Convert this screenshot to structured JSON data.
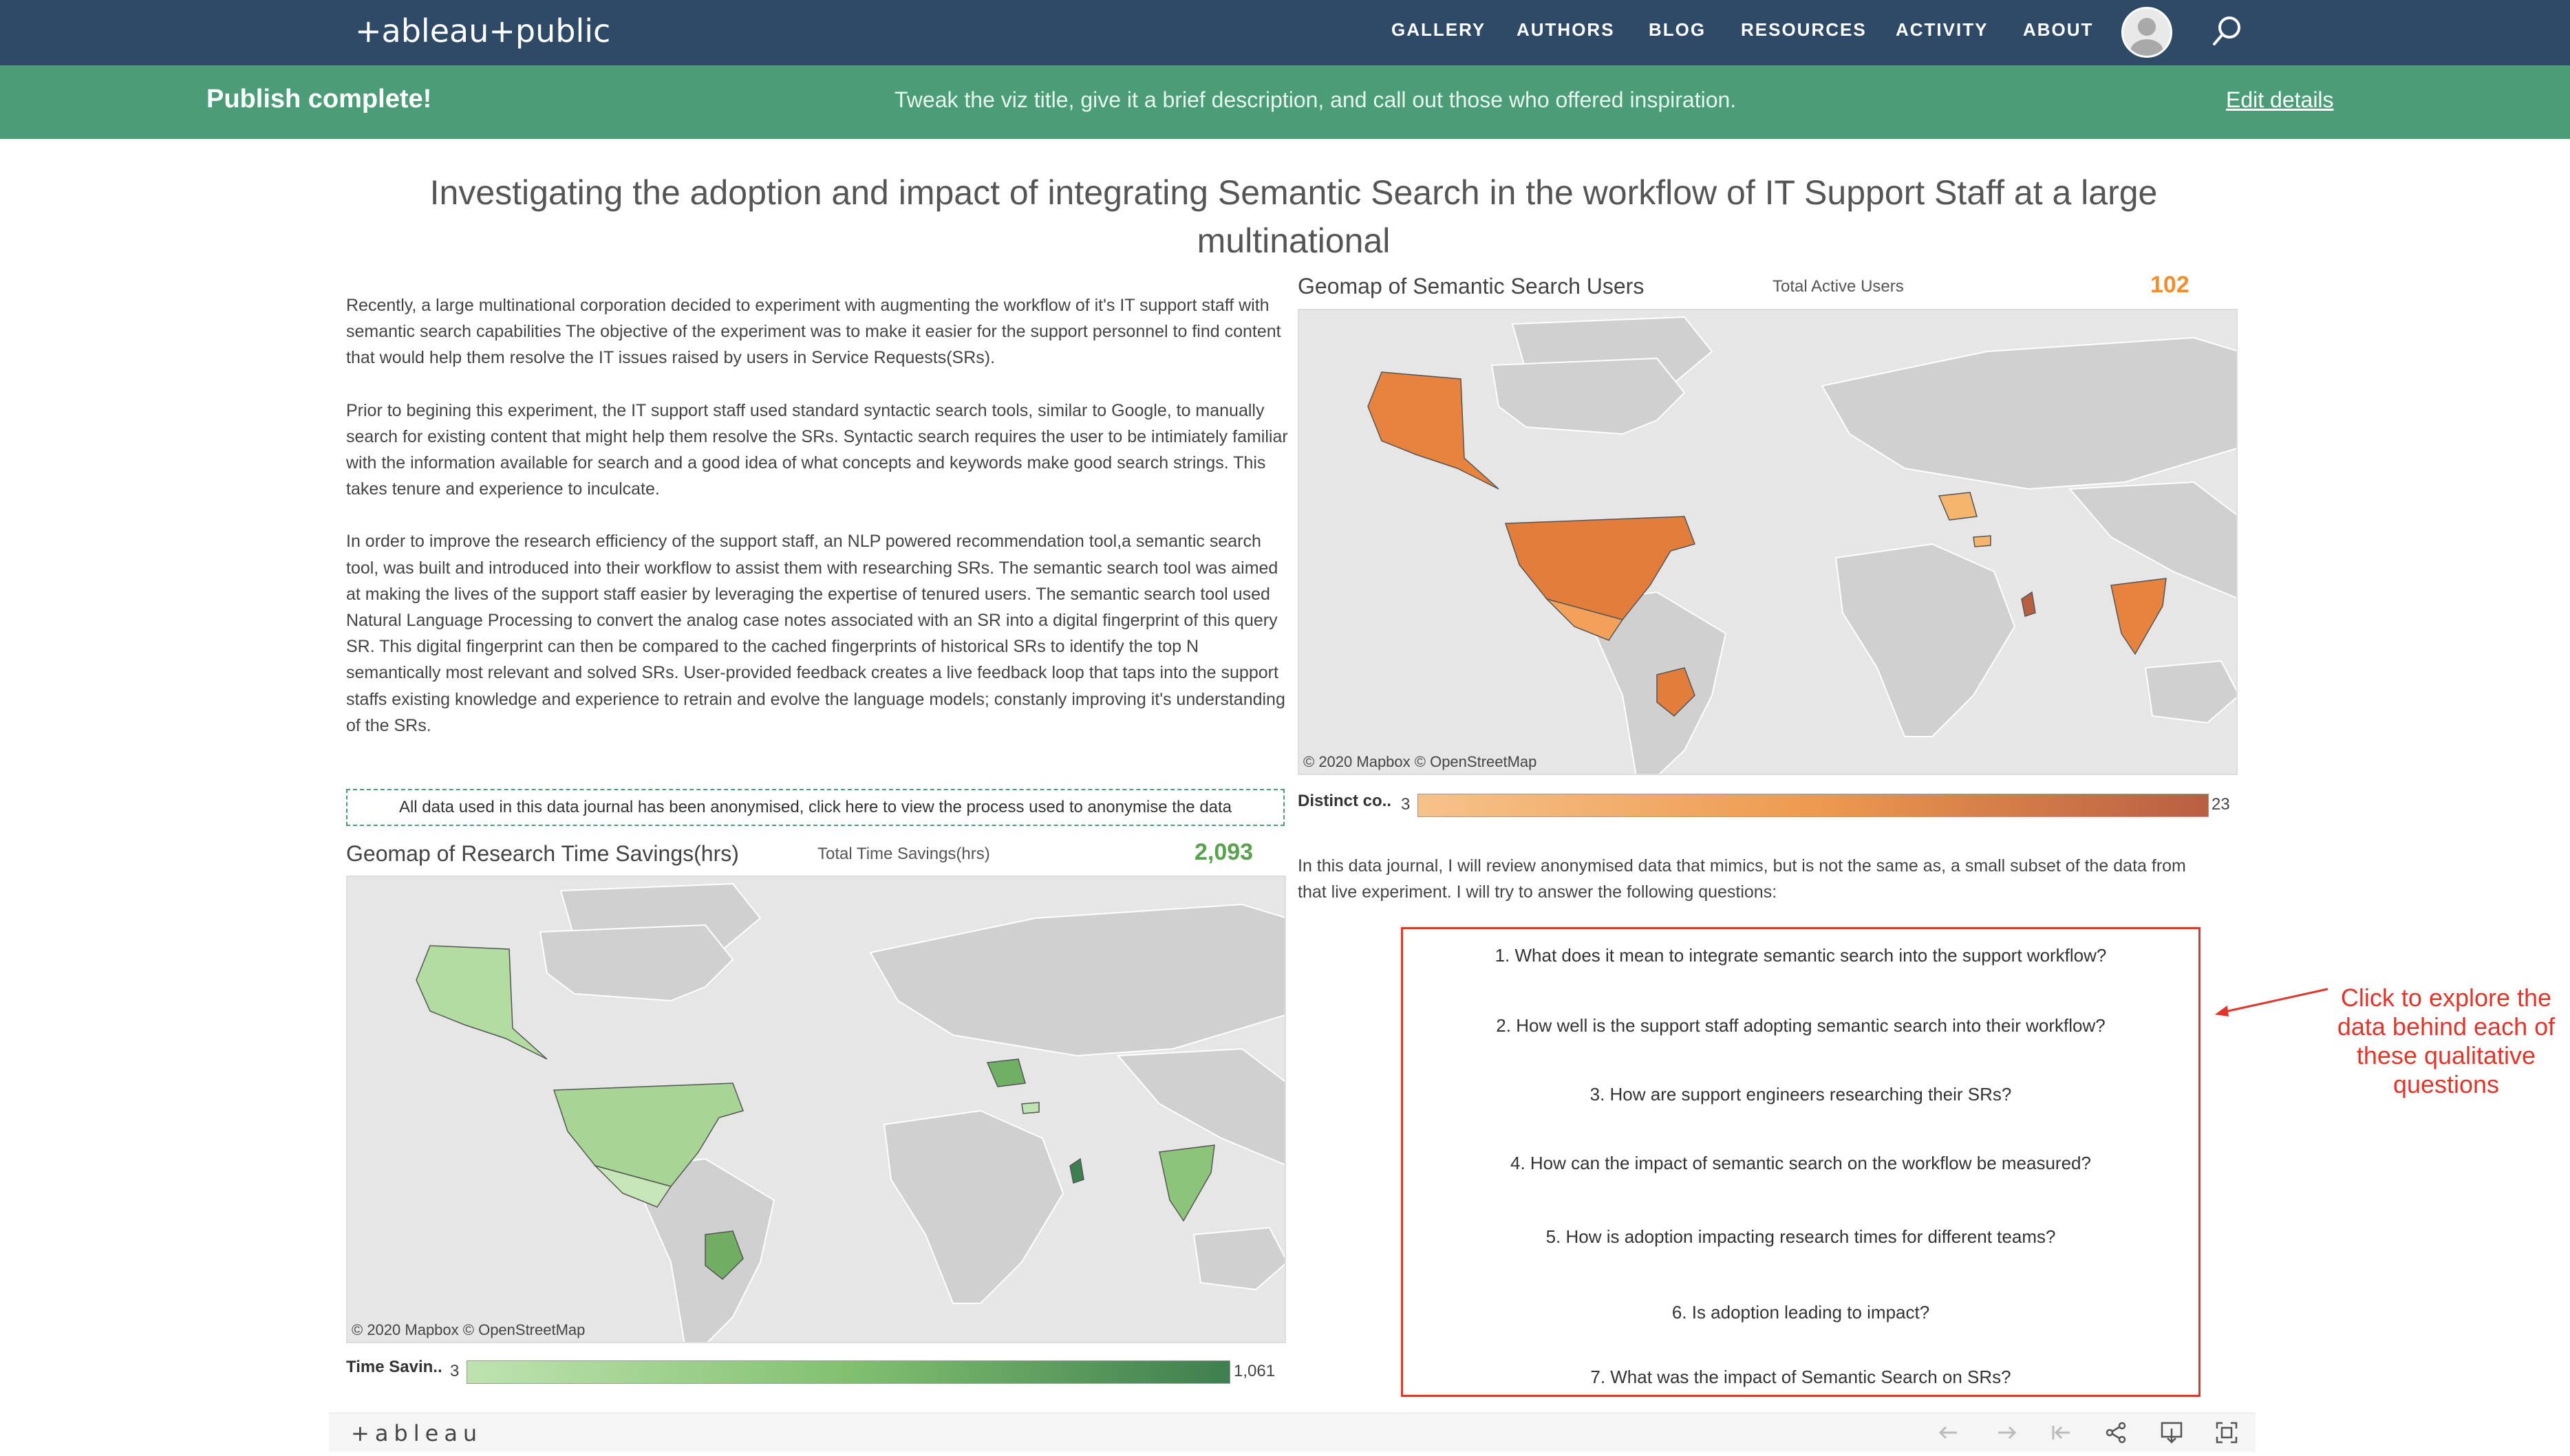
{
  "nav": {
    "logo": "+ableau+public",
    "items": [
      "GALLERY",
      "AUTHORS",
      "BLOG",
      "RESOURCES",
      "ACTIVITY",
      "ABOUT"
    ]
  },
  "banner": {
    "status": "Publish complete!",
    "tip": "Tweak the viz title, give it a brief description, and call out those who offered inspiration.",
    "edit_link": "Edit details"
  },
  "dashboard": {
    "title": "Investigating the adoption and impact of integrating Semantic Search in the workflow of IT Support Staff at a large multinational",
    "intro": [
      "Recently, a large multinational corporation decided to experiment with augmenting the workflow of it's IT support staff with semantic search capabilities The objective of the experiment was to make it easier for the support personnel to find content that would help them resolve the IT issues raised by users in Service Requests(SRs).",
      "Prior to begining this experiment, the IT support staff used standard syntactic search tools, similar to Google, to manually search for existing content that might help them resolve the SRs. Syntactic search requires the user to be intimiately familiar with the information available for search and a good idea of what concepts and keywords make good search strings. This takes tenure and experience to inculcate.",
      "In order to improve the research efficiency of the support staff, an NLP powered recommendation tool,a semantic search tool, was built  and introduced into their workflow to assist them with researching SRs. The semantic search tool was aimed at making the lives of the support staff easier by leveraging the expertise of tenured users. The semantic search tool used Natural Language Processing to convert the analog case notes associated with an SR into a digital fingerprint of this query SR. This digital fingerprint can then be compared to the cached fingerprints of historical SRs to identify the top N semantically most relevant and solved SRs. User-provided feedback creates a live feedback loop that taps into the support staffs existing knowledge and experience to retrain and evolve the language models; constanly improving it's understanding of the SRs."
    ],
    "anonymise_note": "All data used in this data journal has been anonymised, click here to view the process used to anonymise the data",
    "users_map": {
      "title": "Geomap of Semantic Search Users",
      "kpi_label": "Total Active Users",
      "kpi_value": "102",
      "attribution": "© 2020 Mapbox  © OpenStreetMap",
      "legend_label": "Distinct co..",
      "legend_min": "3",
      "legend_max": "23",
      "color_low": "#f6c28a",
      "color_high": "#b85f42",
      "accent": "#f28e2b"
    },
    "savings_map": {
      "title": "Geomap of Research Time Savings(hrs)",
      "kpi_label": "Total Time Savings(hrs)",
      "kpi_value": "2,093",
      "attribution": "© 2020 Mapbox  © OpenStreetMap",
      "legend_label": "Time Savin..",
      "legend_min": "3",
      "legend_max": "1,061",
      "color_low": "#bfe3b0",
      "color_high": "#3e7f4f",
      "accent": "#59a14f"
    },
    "journal_intro": "In this data journal, I will review anonymised data that mimics, but is not the same as, a small subset of the data from that live experiment. I will try to answer the following questions:",
    "questions": [
      "1. What does it mean to integrate semantic search into the support workflow?",
      "2. How well is the support staff adopting semantic search into their workflow?",
      "3. How are support engineers researching their SRs?",
      "4. How can the impact of semantic search on the workflow be measured?",
      "5. How is adoption impacting research times for different teams?",
      "6. Is adoption leading to impact?",
      "7. What was the impact of Semantic Search on SRs?"
    ],
    "callout": "Click to explore the data behind each of these qualitative questions"
  },
  "toolbar": {
    "logo": "+ableau",
    "buttons": [
      "undo-icon",
      "redo-icon",
      "revert-icon",
      "share-icon",
      "download-icon",
      "fullscreen-icon"
    ]
  }
}
